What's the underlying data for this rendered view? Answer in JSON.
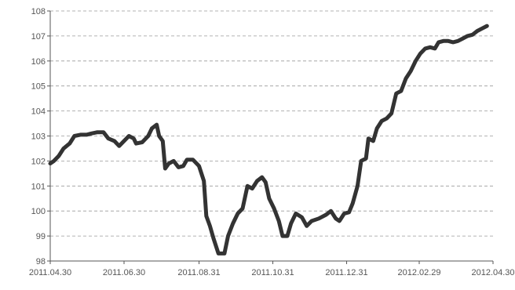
{
  "chart_data": {
    "type": "line",
    "title": "",
    "xlabel": "",
    "ylabel": "",
    "ylim": [
      98,
      108
    ],
    "yticks": [
      "98",
      "99",
      "100",
      "101",
      "102",
      "103",
      "104",
      "105",
      "106",
      "107",
      "108"
    ],
    "xticks": [
      "2011.04.30",
      "2011.06.30",
      "2011.08.31",
      "2011.10.31",
      "2011.12.31",
      "2012.02.29",
      "2012.04.30"
    ],
    "grid": "horizontal-dashed",
    "legend": "none",
    "series": [
      {
        "line_color": "#333333",
        "points": [
          [
            "2011-04-30",
            101.9
          ],
          [
            "2011-05-03",
            102.0
          ],
          [
            "2011-05-07",
            102.2
          ],
          [
            "2011-05-11",
            102.5
          ],
          [
            "2011-05-16",
            102.7
          ],
          [
            "2011-05-20",
            103.0
          ],
          [
            "2011-05-25",
            103.05
          ],
          [
            "2011-05-30",
            103.05
          ],
          [
            "2011-06-03",
            103.1
          ],
          [
            "2011-06-08",
            103.15
          ],
          [
            "2011-06-13",
            103.15
          ],
          [
            "2011-06-17",
            102.9
          ],
          [
            "2011-06-22",
            102.8
          ],
          [
            "2011-06-26",
            102.6
          ],
          [
            "2011-06-30",
            102.8
          ],
          [
            "2011-07-04",
            103.0
          ],
          [
            "2011-07-08",
            102.9
          ],
          [
            "2011-07-10",
            102.7
          ],
          [
            "2011-07-15",
            102.75
          ],
          [
            "2011-07-20",
            103.0
          ],
          [
            "2011-07-23",
            103.3
          ],
          [
            "2011-07-27",
            103.45
          ],
          [
            "2011-07-29",
            103.0
          ],
          [
            "2011-08-01",
            102.8
          ],
          [
            "2011-08-03",
            101.7
          ],
          [
            "2011-08-06",
            101.9
          ],
          [
            "2011-08-10",
            102.0
          ],
          [
            "2011-08-14",
            101.75
          ],
          [
            "2011-08-18",
            101.8
          ],
          [
            "2011-08-21",
            102.05
          ],
          [
            "2011-08-26",
            102.05
          ],
          [
            "2011-08-31",
            101.8
          ],
          [
            "2011-09-04",
            101.2
          ],
          [
            "2011-09-06",
            99.8
          ],
          [
            "2011-09-09",
            99.4
          ],
          [
            "2011-09-12",
            98.9
          ],
          [
            "2011-09-16",
            98.3
          ],
          [
            "2011-09-21",
            98.3
          ],
          [
            "2011-09-24",
            99.0
          ],
          [
            "2011-09-28",
            99.5
          ],
          [
            "2011-10-02",
            99.9
          ],
          [
            "2011-10-06",
            100.1
          ],
          [
            "2011-10-10",
            101.0
          ],
          [
            "2011-10-14",
            100.9
          ],
          [
            "2011-10-18",
            101.2
          ],
          [
            "2011-10-22",
            101.35
          ],
          [
            "2011-10-25",
            101.15
          ],
          [
            "2011-10-28",
            100.5
          ],
          [
            "2011-11-01",
            100.1
          ],
          [
            "2011-11-05",
            99.6
          ],
          [
            "2011-11-08",
            99.0
          ],
          [
            "2011-11-12",
            99.0
          ],
          [
            "2011-11-15",
            99.5
          ],
          [
            "2011-11-19",
            99.9
          ],
          [
            "2011-11-24",
            99.75
          ],
          [
            "2011-11-28",
            99.4
          ],
          [
            "2011-12-02",
            99.6
          ],
          [
            "2011-12-08",
            99.7
          ],
          [
            "2011-12-14",
            99.85
          ],
          [
            "2011-12-18",
            100.0
          ],
          [
            "2011-12-22",
            99.7
          ],
          [
            "2011-12-25",
            99.6
          ],
          [
            "2011-12-29",
            99.9
          ],
          [
            "2012-01-02",
            99.95
          ],
          [
            "2012-01-05",
            100.3
          ],
          [
            "2012-01-09",
            101.0
          ],
          [
            "2012-01-12",
            102.0
          ],
          [
            "2012-01-16",
            102.1
          ],
          [
            "2012-01-18",
            102.9
          ],
          [
            "2012-01-22",
            102.8
          ],
          [
            "2012-01-25",
            103.3
          ],
          [
            "2012-01-29",
            103.6
          ],
          [
            "2012-02-02",
            103.7
          ],
          [
            "2012-02-06",
            103.9
          ],
          [
            "2012-02-10",
            104.7
          ],
          [
            "2012-02-14",
            104.8
          ],
          [
            "2012-02-18",
            105.3
          ],
          [
            "2012-02-22",
            105.6
          ],
          [
            "2012-02-26",
            106.0
          ],
          [
            "2012-03-01",
            106.3
          ],
          [
            "2012-03-05",
            106.5
          ],
          [
            "2012-03-09",
            106.55
          ],
          [
            "2012-03-13",
            106.5
          ],
          [
            "2012-03-16",
            106.75
          ],
          [
            "2012-03-20",
            106.8
          ],
          [
            "2012-03-24",
            106.8
          ],
          [
            "2012-03-28",
            106.75
          ],
          [
            "2012-04-01",
            106.8
          ],
          [
            "2012-04-05",
            106.9
          ],
          [
            "2012-04-09",
            107.0
          ],
          [
            "2012-04-13",
            107.05
          ],
          [
            "2012-04-17",
            107.2
          ],
          [
            "2012-04-21",
            107.3
          ],
          [
            "2012-04-25",
            107.4
          ]
        ]
      }
    ]
  }
}
